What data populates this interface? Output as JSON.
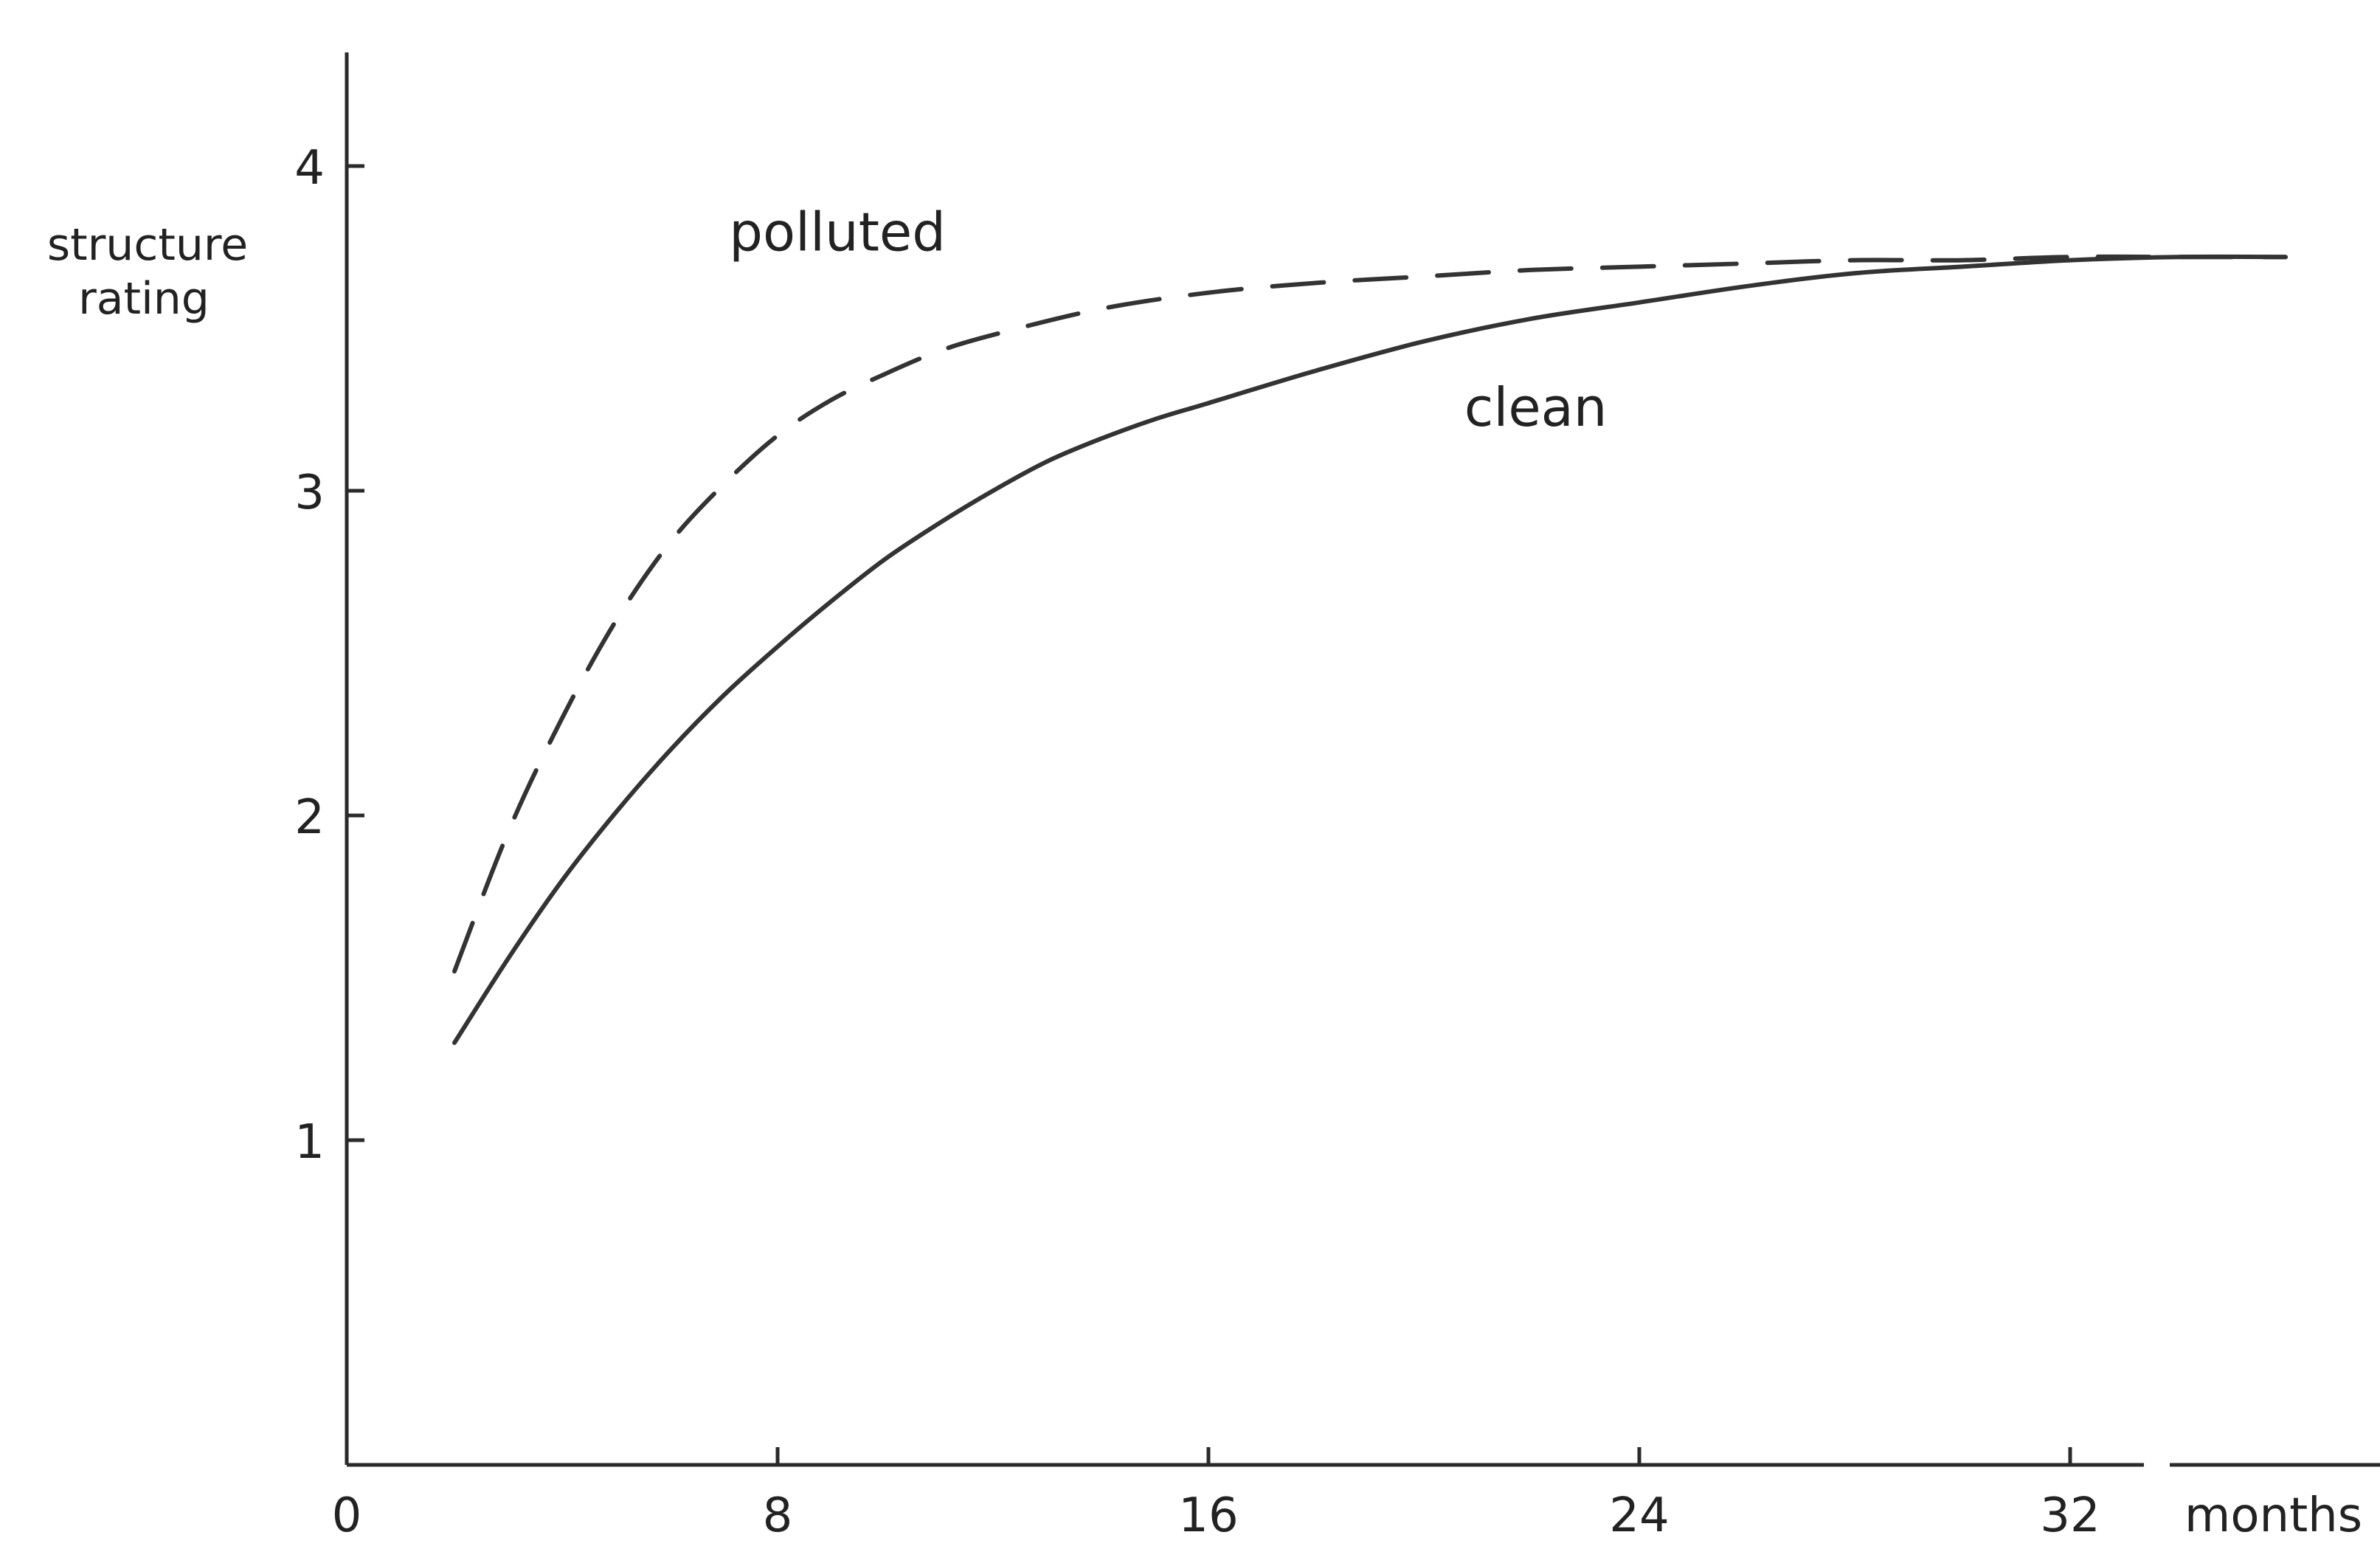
{
  "chart_data": {
    "type": "line",
    "title": "",
    "xlabel": "months",
    "ylabel_lines": [
      "structure",
      "rating"
    ],
    "x_ticks": [
      "0",
      "8",
      "16",
      "24",
      "32"
    ],
    "y_ticks": [
      "1",
      "2",
      "3",
      "4"
    ],
    "xlim": [
      0,
      38
    ],
    "ylim": [
      0,
      4.35
    ],
    "grid": false,
    "legend": "none",
    "series": [
      {
        "name": "polluted",
        "style": "dashed",
        "color": "#333333",
        "x": [
          2,
          3,
          4,
          5,
          6,
          7,
          8,
          9,
          10,
          11,
          12,
          14,
          16,
          18,
          20,
          22,
          24,
          26,
          28,
          30,
          32,
          34,
          36
        ],
        "y": [
          1.52,
          1.95,
          2.3,
          2.6,
          2.84,
          3.02,
          3.17,
          3.28,
          3.36,
          3.43,
          3.48,
          3.56,
          3.61,
          3.64,
          3.66,
          3.68,
          3.69,
          3.7,
          3.71,
          3.71,
          3.72,
          3.72,
          3.72
        ]
      },
      {
        "name": "clean",
        "style": "solid",
        "color": "#333333",
        "x": [
          2,
          3,
          4,
          5,
          6,
          7,
          8,
          9,
          10,
          11,
          12,
          13,
          14,
          15,
          16,
          18,
          20,
          22,
          24,
          26,
          28,
          30,
          32,
          34,
          36
        ],
        "y": [
          1.3,
          1.56,
          1.8,
          2.01,
          2.2,
          2.37,
          2.52,
          2.66,
          2.79,
          2.9,
          3.0,
          3.09,
          3.16,
          3.22,
          3.27,
          3.37,
          3.46,
          3.53,
          3.58,
          3.63,
          3.67,
          3.69,
          3.71,
          3.72,
          3.72
        ]
      }
    ]
  }
}
